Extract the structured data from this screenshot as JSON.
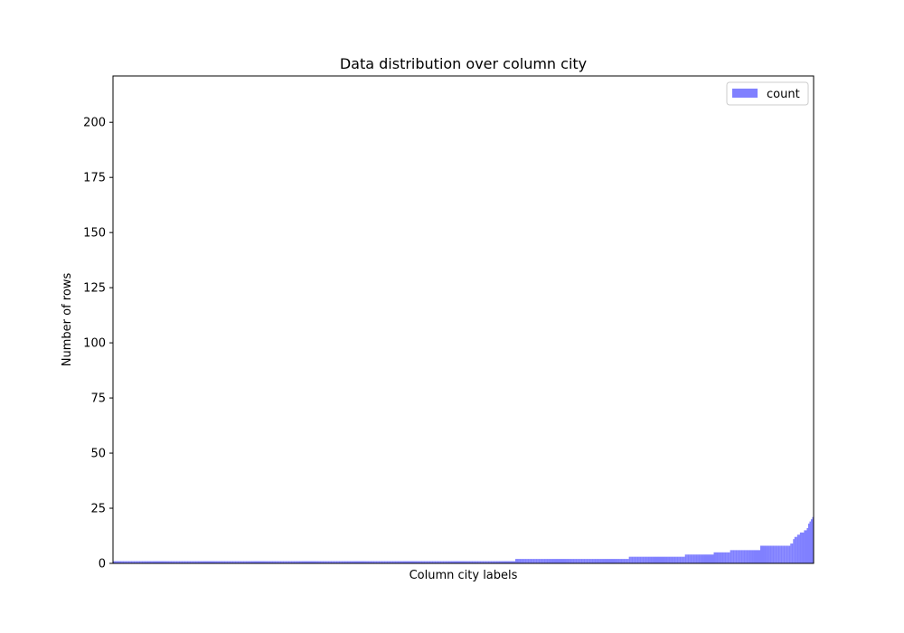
{
  "chart_data": {
    "type": "bar",
    "title": "Data distribution over column city",
    "xlabel": "Column city labels",
    "ylabel": "Number of rows",
    "ylim": [
      0,
      221
    ],
    "yticks": [
      0,
      25,
      50,
      75,
      100,
      125,
      150,
      175,
      200
    ],
    "xticks_visible": false,
    "grid": false,
    "legend": {
      "placement": "top-right",
      "entries": [
        "count"
      ]
    },
    "series": [
      {
        "name": "count",
        "color": "#8080ff",
        "values": [
          1,
          1,
          1,
          1,
          1,
          1,
          1,
          1,
          1,
          1,
          1,
          1,
          1,
          1,
          1,
          1,
          1,
          1,
          1,
          1,
          1,
          1,
          1,
          1,
          1,
          1,
          1,
          1,
          1,
          1,
          1,
          1,
          1,
          1,
          1,
          1,
          1,
          1,
          1,
          1,
          1,
          1,
          1,
          1,
          1,
          1,
          1,
          1,
          1,
          1,
          1,
          1,
          1,
          1,
          1,
          1,
          1,
          1,
          1,
          1,
          1,
          1,
          1,
          1,
          1,
          1,
          1,
          1,
          1,
          1,
          1,
          1,
          1,
          1,
          1,
          1,
          1,
          1,
          1,
          1,
          1,
          1,
          1,
          1,
          1,
          1,
          1,
          1,
          1,
          1,
          1,
          1,
          1,
          1,
          1,
          1,
          1,
          1,
          1,
          1,
          1,
          1,
          1,
          1,
          1,
          1,
          1,
          1,
          1,
          1,
          1,
          1,
          1,
          1,
          1,
          1,
          1,
          1,
          1,
          1,
          1,
          1,
          1,
          1,
          1,
          1,
          1,
          1,
          1,
          1,
          1,
          1,
          1,
          1,
          1,
          1,
          1,
          1,
          1,
          1,
          1,
          1,
          1,
          1,
          1,
          1,
          1,
          1,
          1,
          1,
          1,
          1,
          1,
          1,
          1,
          1,
          1,
          1,
          1,
          1,
          1,
          1,
          1,
          1,
          1,
          1,
          1,
          1,
          1,
          1,
          1,
          1,
          1,
          1,
          1,
          1,
          1,
          1,
          1,
          1,
          1,
          1,
          1,
          1,
          1,
          1,
          1,
          1,
          1,
          1,
          1,
          1,
          1,
          1,
          1,
          1,
          1,
          1,
          1,
          1,
          1,
          1,
          1,
          1,
          1,
          1,
          1,
          1,
          1,
          1,
          1,
          1,
          1,
          1,
          1,
          1,
          1,
          1,
          1,
          1,
          1,
          1,
          1,
          1,
          1,
          1,
          1,
          1,
          1,
          1,
          1,
          1,
          1,
          1,
          1,
          1,
          1,
          1,
          1,
          1,
          1,
          1,
          1,
          1,
          1,
          1,
          1,
          1,
          1,
          1,
          1,
          1,
          1,
          1,
          1,
          1,
          1,
          1,
          1,
          1,
          1,
          1,
          1,
          1,
          1,
          1,
          1,
          1,
          1,
          1,
          1,
          1,
          1,
          1,
          1,
          1,
          1,
          1,
          1,
          1,
          1,
          1,
          1,
          1,
          1,
          1,
          1,
          1,
          1,
          1,
          1,
          1,
          1,
          1,
          2,
          2,
          2,
          2,
          2,
          2,
          2,
          2,
          2,
          2,
          2,
          2,
          2,
          2,
          2,
          2,
          2,
          2,
          2,
          2,
          2,
          2,
          2,
          2,
          2,
          2,
          2,
          2,
          2,
          2,
          2,
          2,
          2,
          2,
          2,
          2,
          2,
          2,
          2,
          2,
          2,
          2,
          2,
          2,
          2,
          2,
          2,
          2,
          2,
          2,
          2,
          2,
          2,
          2,
          2,
          2,
          2,
          2,
          2,
          2,
          2,
          2,
          2,
          2,
          2,
          2,
          2,
          2,
          2,
          2,
          2,
          2,
          2,
          2,
          2,
          2,
          2,
          2,
          2,
          2,
          2,
          2,
          2,
          3,
          3,
          3,
          3,
          3,
          3,
          3,
          3,
          3,
          3,
          3,
          3,
          3,
          3,
          3,
          3,
          3,
          3,
          3,
          3,
          3,
          3,
          3,
          3,
          3,
          3,
          3,
          3,
          3,
          3,
          3,
          3,
          3,
          3,
          3,
          3,
          3,
          3,
          3,
          3,
          3,
          4,
          4,
          4,
          4,
          4,
          4,
          4,
          4,
          4,
          4,
          4,
          4,
          4,
          4,
          4,
          4,
          4,
          4,
          4,
          4,
          4,
          5,
          5,
          5,
          5,
          5,
          5,
          5,
          5,
          5,
          5,
          5,
          5,
          6,
          6,
          6,
          6,
          6,
          6,
          6,
          6,
          6,
          6,
          6,
          6,
          6,
          6,
          6,
          6,
          6,
          6,
          6,
          6,
          6,
          6,
          8,
          8,
          8,
          8,
          8,
          8,
          8,
          8,
          8,
          8,
          8,
          8,
          8,
          8,
          8,
          8,
          8,
          8,
          8,
          8,
          8,
          8,
          9,
          9,
          11,
          12,
          12,
          13,
          13,
          14,
          14,
          14,
          15,
          15,
          16,
          18,
          19,
          20,
          21
        ]
      }
    ]
  }
}
